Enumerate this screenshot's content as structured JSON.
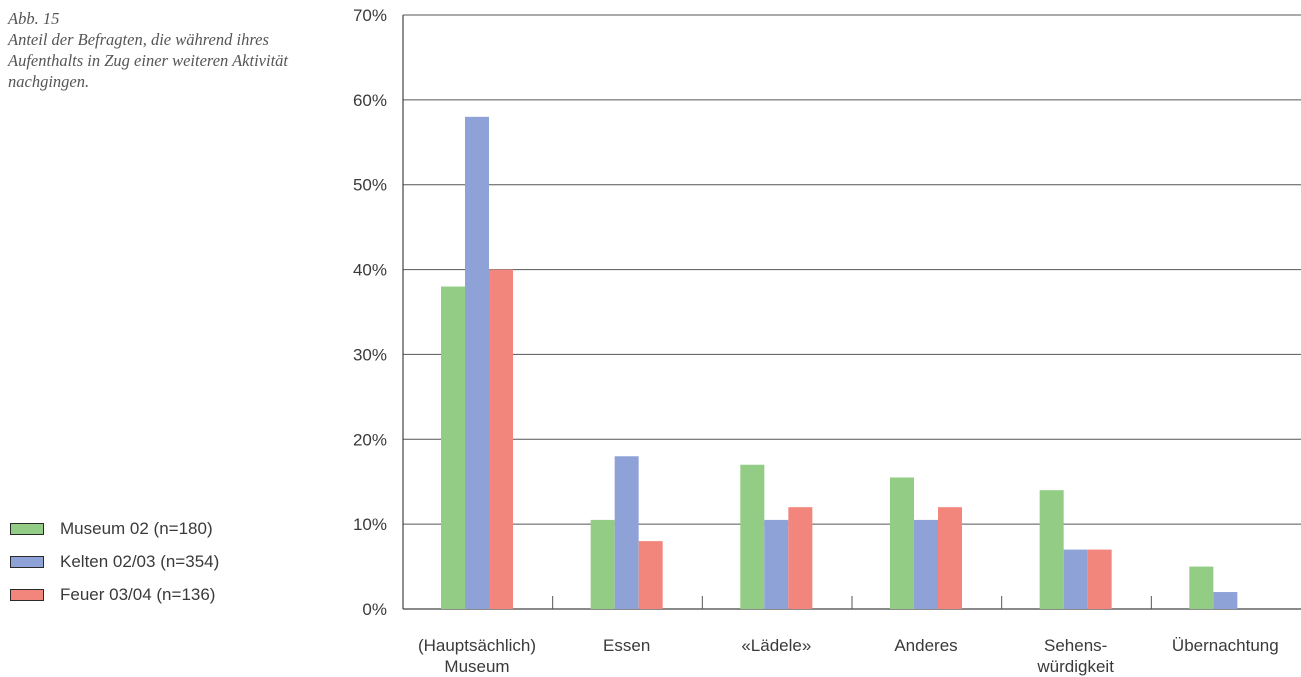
{
  "caption": {
    "label": "Abb. 15",
    "text": "Anteil der Befragten, die während ihres Aufenthalts in Zug einer weiteren Aktivität nachgingen."
  },
  "legend": [
    {
      "name": "Museum 02 (n=180)",
      "color": "#93cc85"
    },
    {
      "name": "Kelten 02/03 (n=354)",
      "color": "#8fa2d8"
    },
    {
      "name": "Feuer 03/04 (n=136)",
      "color": "#f2867c"
    }
  ],
  "chart_data": {
    "type": "bar",
    "ylim": [
      0,
      70
    ],
    "yticks": [
      "0%",
      "10%",
      "20%",
      "30%",
      "40%",
      "50%",
      "60%",
      "70%"
    ],
    "categories": [
      [
        "(Hauptsächlich)",
        "Museum"
      ],
      [
        "Essen"
      ],
      [
        "«Lädele»"
      ],
      [
        "Anderes"
      ],
      [
        "Sehens-",
        "würdigkeit"
      ],
      [
        "Übernachtung"
      ]
    ],
    "series": [
      {
        "name": "Museum 02 (n=180)",
        "color": "#93cc85",
        "values": [
          38,
          10.5,
          17,
          15.5,
          14,
          5
        ]
      },
      {
        "name": "Kelten 02/03 (n=354)",
        "color": "#8fa2d8",
        "values": [
          58,
          18,
          10.5,
          10.5,
          7,
          2
        ]
      },
      {
        "name": "Feuer 03/04 (n=136)",
        "color": "#f2867c",
        "values": [
          40,
          8,
          12,
          12,
          7,
          0
        ]
      }
    ],
    "grid": true,
    "legend_position": "left"
  }
}
